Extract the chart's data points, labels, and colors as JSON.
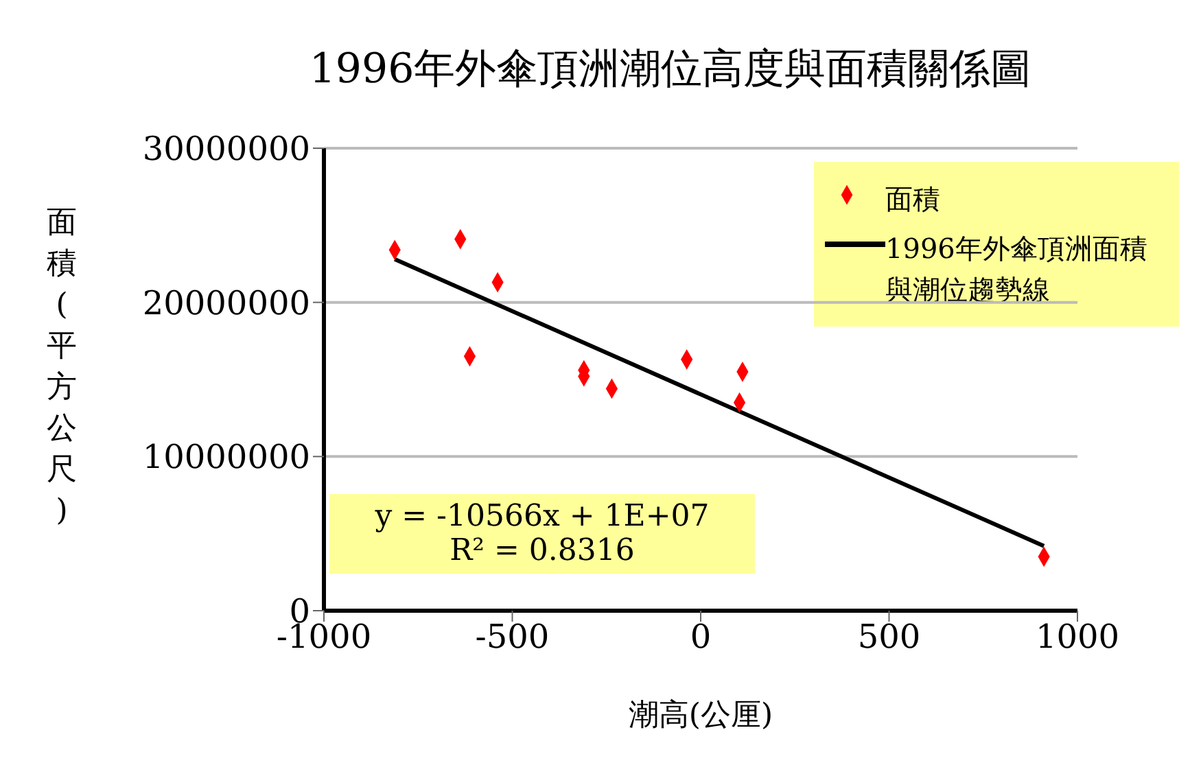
{
  "chart_data": {
    "type": "scatter",
    "title": "1996年外傘頂洲潮位高度與面積關係圖",
    "xlabel": "潮高(公厘)",
    "ylabel": "面積(平方公尺)",
    "annotations": [
      "y = -10566x + 1E+07",
      "R² = 0.8316"
    ],
    "series": [
      {
        "name": "面積",
        "color": "#ff0000",
        "marker": "diamond",
        "x": [
          -812,
          -638,
          -539,
          -613,
          -310,
          -310,
          -236,
          -37,
          111,
          103,
          911
        ],
        "values": [
          23400000,
          24100000,
          21300000,
          16500000,
          15600000,
          15200000,
          14400000,
          16300000,
          15500000,
          13500000,
          3500000
        ]
      },
      {
        "name": "1996年外傘頂洲面積與潮位趨勢線",
        "type": "line",
        "color": "#000000",
        "marker": "none",
        "line_style": "solid",
        "x": [
          -812,
          911
        ],
        "values": [
          22800000,
          4200000
        ]
      }
    ],
    "xlim": [
      -1000,
      1000
    ],
    "xticks": [
      -1000,
      -500,
      0,
      500,
      1000
    ],
    "ylim": [
      0,
      30000000
    ],
    "yticks": [
      0,
      10000000,
      20000000,
      30000000
    ],
    "grid": "y",
    "legend": "top right"
  }
}
